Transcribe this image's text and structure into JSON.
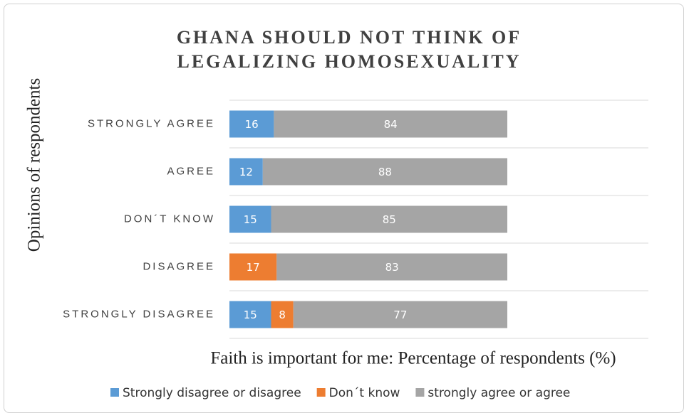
{
  "chart_data": {
    "type": "stacked_bar_horizontal",
    "title": "GHANA SHOULD NOT THINK OF LEGALIZING HOMOSEXUALITY",
    "x_label": "Faith is important for me: Percentage of respondents (%)",
    "y_label": "Opinions  of respondents",
    "categories": [
      "STRONGLY AGREE",
      "AGREE",
      "DON´T KNOW",
      "DISAGREE",
      "STRONGLY DISAGREE"
    ],
    "series": [
      {
        "name": "Strongly disagree or disagree",
        "color": "#5b9bd5",
        "values": [
          16,
          12,
          15,
          null,
          15
        ]
      },
      {
        "name": "Don´t know",
        "color": "#ed7d31",
        "values": [
          null,
          null,
          null,
          17,
          8
        ]
      },
      {
        "name": "strongly agree or agree",
        "color": "#a5a5a5",
        "values": [
          84,
          88,
          85,
          83,
          77
        ]
      }
    ],
    "xlim": [
      0,
      100
    ],
    "legend": "bottom"
  }
}
